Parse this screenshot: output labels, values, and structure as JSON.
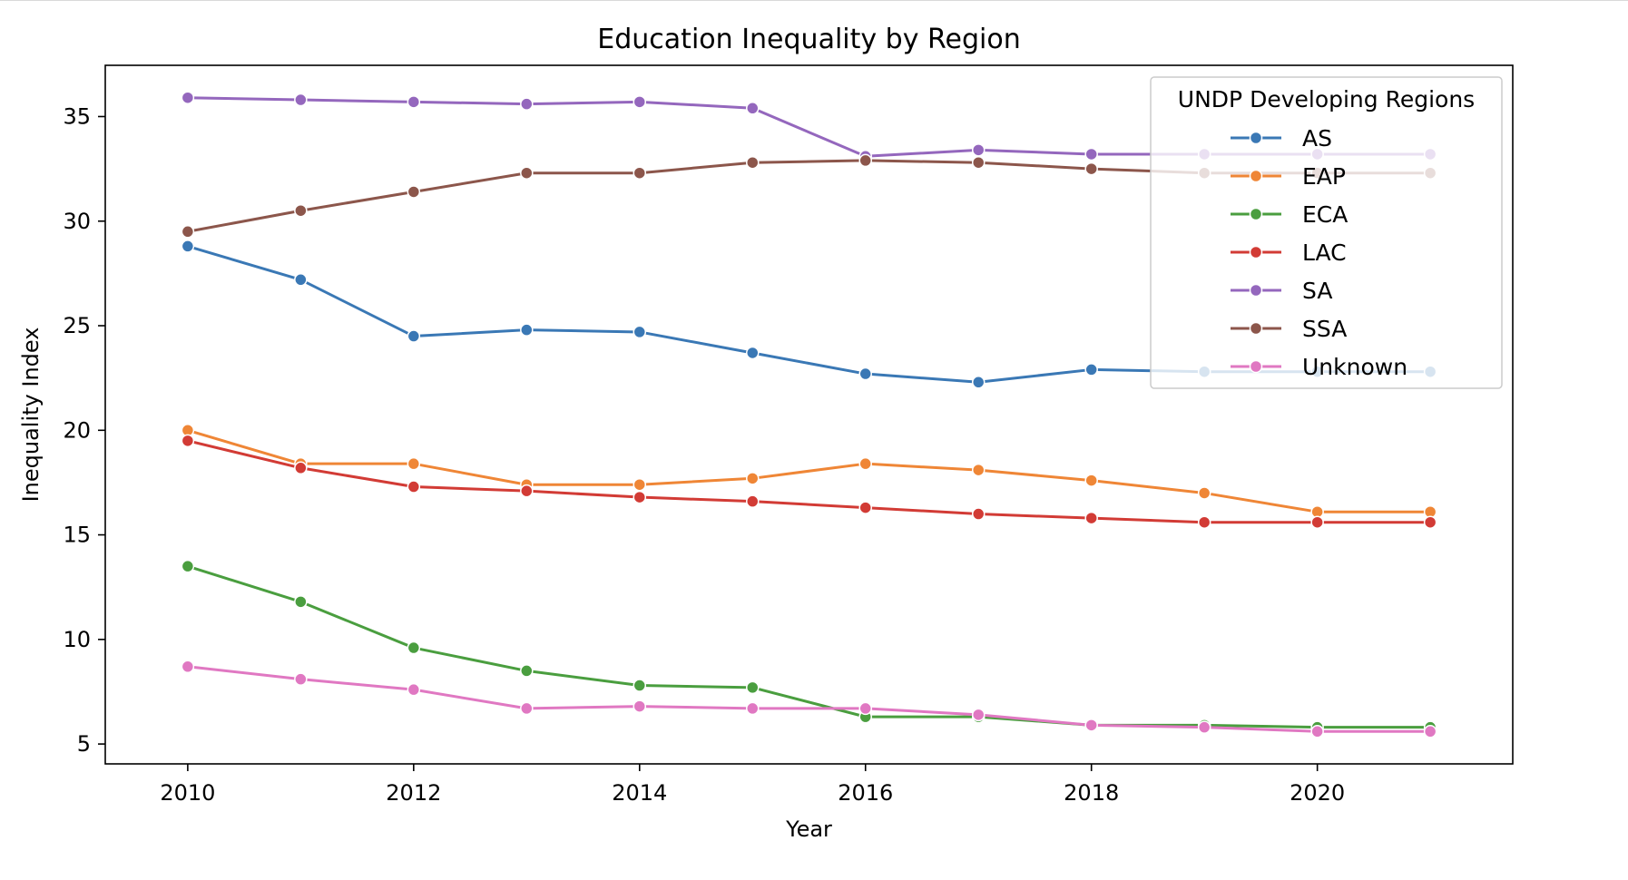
{
  "chart_data": {
    "type": "line",
    "title": "Education Inequality by Region",
    "xlabel": "Year",
    "ylabel": "Inequality Index",
    "xlim": [
      2009.27,
      2021.73
    ],
    "ylim": [
      4.05,
      37.45
    ],
    "x_ticks": [
      2010,
      2012,
      2014,
      2016,
      2018,
      2020
    ],
    "y_ticks": [
      5,
      10,
      15,
      20,
      25,
      30,
      35
    ],
    "grid": false,
    "legend": {
      "title": "UNDP Developing Regions",
      "placement": "top-right"
    },
    "x": [
      2010,
      2011,
      2012,
      2013,
      2014,
      2015,
      2016,
      2017,
      2018,
      2019,
      2020,
      2021
    ],
    "series": [
      {
        "name": "AS",
        "color": "#3a78b5",
        "values": [
          28.8,
          27.2,
          24.5,
          24.8,
          24.7,
          23.7,
          22.7,
          22.3,
          22.9,
          22.8,
          22.8,
          22.8
        ]
      },
      {
        "name": "EAP",
        "color": "#ef8636",
        "values": [
          20.0,
          18.4,
          18.4,
          17.4,
          17.4,
          17.7,
          18.4,
          18.1,
          17.6,
          17.0,
          16.1,
          16.1
        ]
      },
      {
        "name": "ECA",
        "color": "#4a9e3f",
        "values": [
          13.5,
          11.8,
          9.6,
          8.5,
          7.8,
          7.7,
          6.3,
          6.3,
          5.9,
          5.9,
          5.8,
          5.8
        ]
      },
      {
        "name": "LAC",
        "color": "#d23b35",
        "values": [
          19.5,
          18.2,
          17.3,
          17.1,
          16.8,
          16.6,
          16.3,
          16.0,
          15.8,
          15.6,
          15.6,
          15.6
        ]
      },
      {
        "name": "SA",
        "color": "#9467bd",
        "values": [
          35.9,
          35.8,
          35.7,
          35.6,
          35.7,
          35.4,
          33.1,
          33.4,
          33.2,
          33.2,
          33.2,
          33.2
        ]
      },
      {
        "name": "SSA",
        "color": "#8c564b",
        "values": [
          29.5,
          30.5,
          31.4,
          32.3,
          32.3,
          32.8,
          32.9,
          32.8,
          32.5,
          32.3,
          32.3,
          32.3
        ]
      },
      {
        "name": "Unknown",
        "color": "#e078c2",
        "values": [
          8.7,
          8.1,
          7.6,
          6.7,
          6.8,
          6.7,
          6.7,
          6.4,
          5.9,
          5.8,
          5.6,
          5.6
        ]
      }
    ]
  }
}
